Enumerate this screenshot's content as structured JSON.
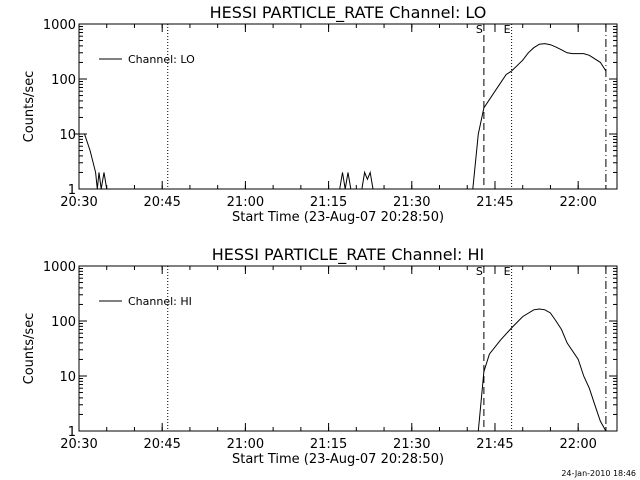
{
  "footer": {
    "timestamp": "24-Jan-2010 18:46"
  },
  "chart_data": [
    {
      "type": "line",
      "title": "HESSI PARTICLE_RATE Channel: LO",
      "xlabel": "Start Time (23-Aug-07 20:28:50)",
      "ylabel": "Counts/sec",
      "y_scale": "log",
      "xlim": [
        "20:30",
        "22:07"
      ],
      "ylim": [
        1,
        1000
      ],
      "x_ticks": [
        "20:30",
        "20:45",
        "21:00",
        "21:15",
        "21:30",
        "21:45",
        "22:00"
      ],
      "y_ticks": [
        "1",
        "10",
        "100",
        "1000"
      ],
      "legend": {
        "label": "Channel: LO",
        "placement": "top-left"
      },
      "markers": [
        {
          "label": "",
          "time": "20:46",
          "style": "dotted"
        },
        {
          "label": "S",
          "time": "21:43",
          "style": "dashed"
        },
        {
          "label": "E",
          "time": "21:48",
          "style": "dotted"
        },
        {
          "label": "",
          "time": "22:05",
          "style": "dash-dot"
        }
      ],
      "series": [
        {
          "points": [
            [
              "20:29",
              10
            ],
            [
              "20:31",
              10
            ],
            [
              "20:32",
              5
            ],
            [
              "20:33",
              2
            ],
            [
              "20:33.3",
              1
            ],
            [
              "20:33.6",
              2
            ],
            [
              "20:34",
              1
            ],
            [
              "20:34.5",
              2
            ],
            [
              "20:35",
              1
            ],
            [
              "21:17",
              1
            ],
            [
              "21:17.5",
              2
            ],
            [
              "21:18",
              1
            ],
            [
              "21:18.5",
              2
            ],
            [
              "21:19",
              1
            ],
            [
              "21:21",
              1
            ],
            [
              "21:21.5",
              2
            ],
            [
              "21:22",
              1.5
            ],
            [
              "21:22.5",
              2
            ],
            [
              "21:23",
              1
            ],
            [
              "21:41",
              1
            ],
            [
              "21:42",
              10
            ],
            [
              "21:43",
              30
            ],
            [
              "21:45",
              60
            ],
            [
              "21:47",
              120
            ],
            [
              "21:48",
              140
            ],
            [
              "21:50",
              220
            ],
            [
              "21:51",
              300
            ],
            [
              "21:52",
              370
            ],
            [
              "21:53",
              430
            ],
            [
              "21:54",
              440
            ],
            [
              "21:55",
              420
            ],
            [
              "21:56",
              380
            ],
            [
              "21:57",
              340
            ],
            [
              "21:58",
              300
            ],
            [
              "21:59",
              290
            ],
            [
              "22:01",
              290
            ],
            [
              "22:02",
              270
            ],
            [
              "22:04",
              200
            ],
            [
              "22:05",
              140
            ]
          ]
        }
      ]
    },
    {
      "type": "line",
      "title": "HESSI PARTICLE_RATE Channel: HI",
      "xlabel": "Start Time (23-Aug-07 20:28:50)",
      "ylabel": "Counts/sec",
      "y_scale": "log",
      "xlim": [
        "20:30",
        "22:07"
      ],
      "ylim": [
        1,
        1000
      ],
      "x_ticks": [
        "20:30",
        "20:45",
        "21:00",
        "21:15",
        "21:30",
        "21:45",
        "22:00"
      ],
      "y_ticks": [
        "1",
        "10",
        "100",
        "1000"
      ],
      "legend": {
        "label": "Channel: HI",
        "placement": "top-left"
      },
      "markers": [
        {
          "label": "",
          "time": "20:46",
          "style": "dotted"
        },
        {
          "label": "S",
          "time": "21:43",
          "style": "dashed"
        },
        {
          "label": "E",
          "time": "21:48",
          "style": "dotted"
        },
        {
          "label": "",
          "time": "22:05",
          "style": "dash-dot"
        }
      ],
      "series": [
        {
          "points": [
            [
              "21:42",
              1
            ],
            [
              "21:43",
              12
            ],
            [
              "21:44",
              25
            ],
            [
              "21:46",
              45
            ],
            [
              "21:48",
              75
            ],
            [
              "21:50",
              120
            ],
            [
              "21:52",
              160
            ],
            [
              "21:53",
              165
            ],
            [
              "21:54",
              160
            ],
            [
              "21:55",
              140
            ],
            [
              "21:56",
              100
            ],
            [
              "21:57",
              70
            ],
            [
              "21:58",
              40
            ],
            [
              "22:00",
              20
            ],
            [
              "22:01",
              10
            ],
            [
              "22:02",
              6
            ],
            [
              "22:03",
              3
            ],
            [
              "22:04",
              1.5
            ],
            [
              "22:05",
              1
            ]
          ]
        }
      ]
    }
  ]
}
